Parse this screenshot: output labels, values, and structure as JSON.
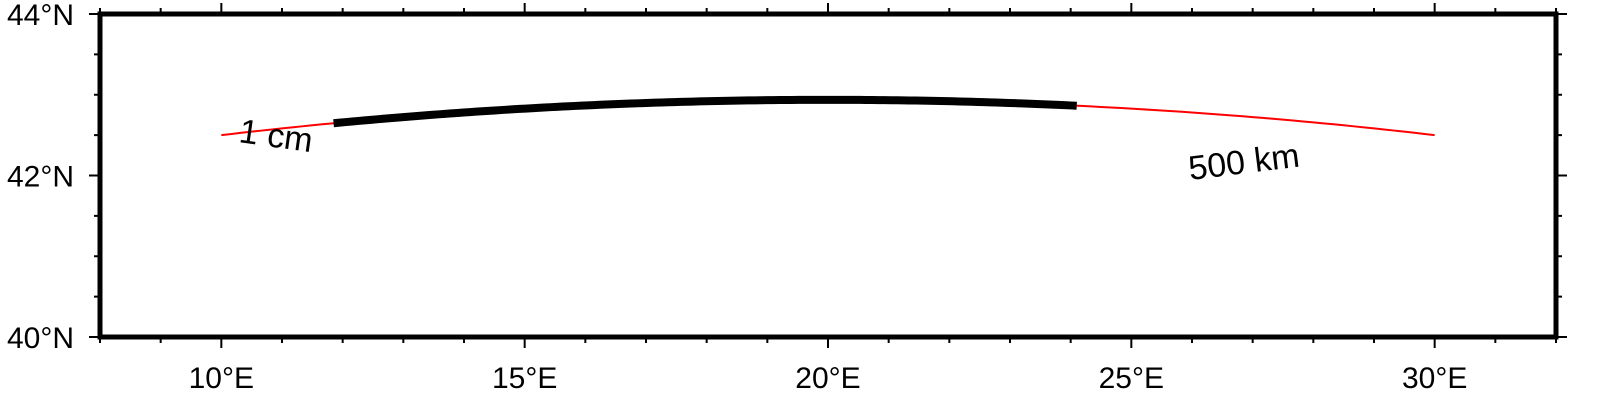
{
  "map": {
    "region": {
      "lon": [
        8,
        32
      ],
      "lat": [
        40,
        44
      ]
    },
    "frame_color": "#000000",
    "x_ticks": [
      {
        "value": 10,
        "label": "10°E"
      },
      {
        "value": 15,
        "label": "15°E"
      },
      {
        "value": 20,
        "label": "20°E"
      },
      {
        "value": 25,
        "label": "25°E"
      },
      {
        "value": 30,
        "label": "30°E"
      }
    ],
    "y_ticks": [
      {
        "value": 40,
        "label": "40°N"
      },
      {
        "value": 42,
        "label": "42°N"
      },
      {
        "value": 44,
        "label": "44°N"
      }
    ],
    "minor_lon_step": 1,
    "minor_lat_step": 0.5,
    "great_circle": {
      "start": {
        "lon": 10,
        "lat": 42.5
      },
      "end": {
        "lon": 30,
        "lat": 42.5
      },
      "color": "#ff0000"
    },
    "thick_segment": {
      "from_lon": 11.85,
      "to_lon": 24.1,
      "color": "#000000"
    },
    "labels": {
      "start": "1 cm",
      "end": "500 km"
    }
  }
}
